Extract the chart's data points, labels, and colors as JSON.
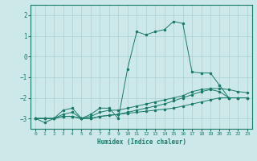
{
  "xlabel": "Humidex (Indice chaleur)",
  "ylabel": "",
  "background_color": "#cce8e8",
  "grid_color": "#aad0d0",
  "line_color": "#1a7a6a",
  "xlim": [
    -0.5,
    23.5
  ],
  "ylim": [
    -3.5,
    2.5
  ],
  "xticks": [
    0,
    1,
    2,
    3,
    4,
    5,
    6,
    7,
    8,
    9,
    10,
    11,
    12,
    13,
    14,
    15,
    16,
    17,
    18,
    19,
    20,
    21,
    22,
    23
  ],
  "yticks": [
    -3,
    -2,
    -1,
    0,
    1,
    2
  ],
  "x": [
    0,
    1,
    2,
    3,
    4,
    5,
    6,
    7,
    8,
    9,
    10,
    11,
    12,
    13,
    14,
    15,
    16,
    17,
    18,
    19,
    20,
    21,
    22,
    23
  ],
  "series": [
    [
      -3.0,
      -3.2,
      -3.0,
      -2.6,
      -2.5,
      -3.0,
      -2.8,
      -2.5,
      -2.5,
      -3.0,
      -0.6,
      1.2,
      1.05,
      1.2,
      1.3,
      1.7,
      1.6,
      -0.75,
      -0.8,
      -0.8,
      -1.4,
      -2.0,
      -2.0,
      -2.0
    ],
    [
      -3.0,
      -3.0,
      -3.0,
      -2.8,
      -2.7,
      -3.0,
      -2.9,
      -2.7,
      -2.6,
      -2.6,
      -2.5,
      -2.4,
      -2.3,
      -2.2,
      -2.1,
      -2.0,
      -1.9,
      -1.7,
      -1.6,
      -1.55,
      -1.55,
      -1.6,
      -1.7,
      -1.75
    ],
    [
      -3.0,
      -3.0,
      -3.0,
      -2.9,
      -2.9,
      -3.0,
      -3.0,
      -2.9,
      -2.85,
      -2.8,
      -2.75,
      -2.7,
      -2.65,
      -2.6,
      -2.55,
      -2.5,
      -2.4,
      -2.3,
      -2.2,
      -2.1,
      -2.0,
      -2.0,
      -2.0,
      -2.0
    ],
    [
      -3.0,
      -3.0,
      -3.0,
      -2.9,
      -2.9,
      -3.0,
      -3.0,
      -2.9,
      -2.85,
      -2.8,
      -2.7,
      -2.6,
      -2.5,
      -2.4,
      -2.3,
      -2.15,
      -2.0,
      -1.85,
      -1.7,
      -1.6,
      -1.7,
      -2.0,
      -2.0,
      -2.0
    ]
  ]
}
